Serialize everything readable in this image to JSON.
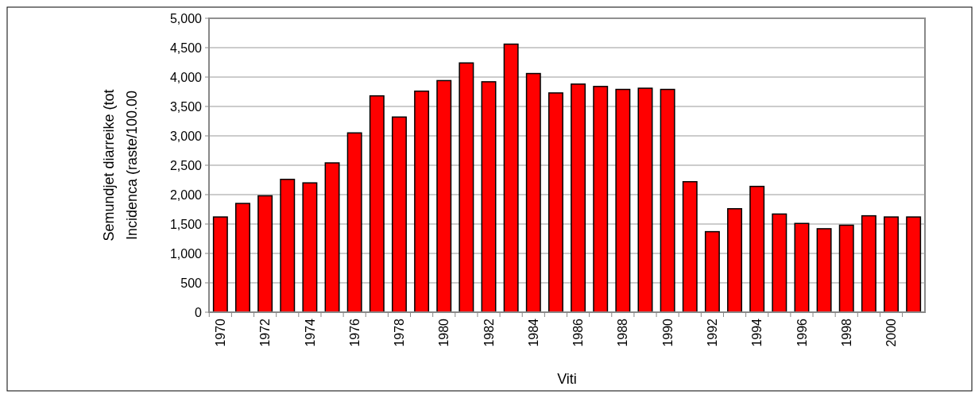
{
  "chart_data": {
    "type": "bar",
    "xlabel": "Viti",
    "ylabel": "Semundjet diarreike (tot\nIncidenca (raste/100.00",
    "categories": [
      "1970",
      null,
      "1972",
      null,
      "1974",
      null,
      "1976",
      null,
      "1978",
      null,
      "1980",
      null,
      "1982",
      null,
      "1984",
      null,
      "1986",
      null,
      "1988",
      null,
      "1990",
      null,
      "1992",
      null,
      "1994",
      null,
      "1996",
      null,
      "1998",
      null,
      "2000",
      null
    ],
    "values": [
      1620,
      1850,
      1980,
      2260,
      2200,
      2540,
      3050,
      3680,
      3320,
      3760,
      3940,
      4240,
      3920,
      4560,
      4060,
      3730,
      3880,
      3840,
      3790,
      3810,
      3790,
      2220,
      1370,
      1760,
      2140,
      1670,
      1510,
      1420,
      1480,
      1640,
      1620,
      1620
    ],
    "color": "#ff0000",
    "ylim": [
      0,
      5000
    ],
    "yticks": [
      {
        "value": 0,
        "label": "0"
      },
      {
        "value": 500,
        "label": "500"
      },
      {
        "value": 1000,
        "label": "1,000"
      },
      {
        "value": 1500,
        "label": "1,500"
      },
      {
        "value": 2000,
        "label": "2,000"
      },
      {
        "value": 2500,
        "label": "2,500"
      },
      {
        "value": 3000,
        "label": "3,000"
      },
      {
        "value": 3500,
        "label": "3,500"
      },
      {
        "value": 4000,
        "label": "4,000"
      },
      {
        "value": 4500,
        "label": "4,500"
      },
      {
        "value": 5000,
        "label": "5,000"
      }
    ],
    "grid": "y"
  }
}
